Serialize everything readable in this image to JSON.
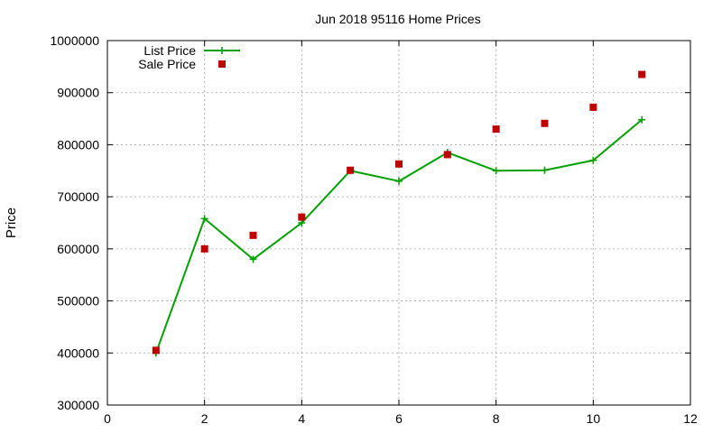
{
  "chart_data": {
    "type": "line",
    "title": "Jun 2018 95116 Home Prices",
    "xlabel": "",
    "ylabel": "Price",
    "xlim": [
      0,
      12
    ],
    "ylim": [
      300000,
      1000000
    ],
    "x_ticks": [
      0,
      2,
      4,
      6,
      8,
      10,
      12
    ],
    "y_ticks": [
      300000,
      400000,
      500000,
      600000,
      700000,
      800000,
      900000,
      1000000
    ],
    "grid": true,
    "legend": "top-left",
    "series": [
      {
        "name": "List Price",
        "style": "line-with-plus-markers",
        "color": "#00a000",
        "x": [
          1,
          2,
          3,
          4,
          5,
          6,
          7,
          8,
          9,
          10,
          11
        ],
        "y": [
          400000,
          658000,
          580000,
          650000,
          750000,
          730000,
          785000,
          750000,
          751000,
          770000,
          848000
        ]
      },
      {
        "name": "Sale Price",
        "style": "square-markers",
        "color": "#c00000",
        "x": [
          1,
          2,
          3,
          4,
          5,
          6,
          7,
          8,
          9,
          10,
          11
        ],
        "y": [
          405000,
          600000,
          626000,
          661000,
          751000,
          763000,
          781000,
          830000,
          841000,
          872000,
          935000
        ]
      }
    ]
  }
}
